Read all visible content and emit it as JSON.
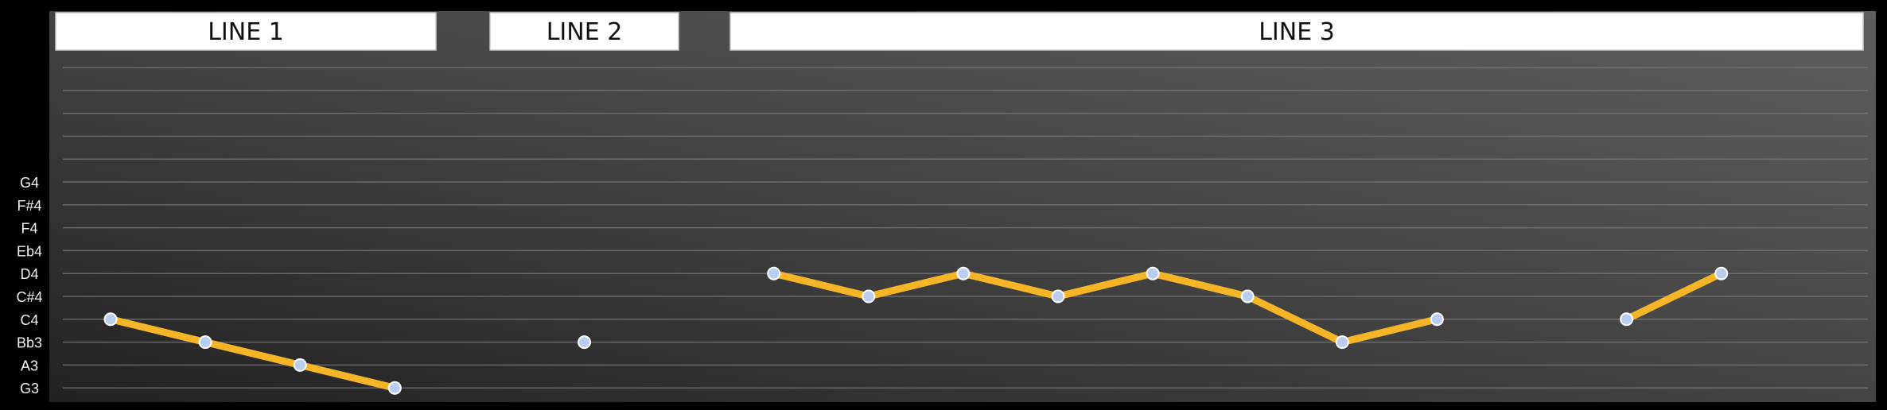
{
  "chart_data": {
    "type": "line",
    "title": "",
    "xlabel": "",
    "ylabel": "",
    "grid": true,
    "colors": {
      "line": "#f6b526",
      "marker_fill": "#b9cdf0",
      "marker_edge": "#ffffff",
      "plot_bg_light": "#5a5a5a",
      "plot_bg_dark": "#2a2a2a",
      "header_bg": "#ffffff",
      "header_text": "#111111",
      "tick_text": "#f2f2f2"
    },
    "y_ticks": [
      "G3",
      "A3",
      "Bb3",
      "C4",
      "C#4",
      "D4",
      "Eb4",
      "F4",
      "F#4",
      "G4"
    ],
    "sections": [
      {
        "label": "LINE 1"
      },
      {
        "label": "LINE 2"
      },
      {
        "label": "LINE 3"
      }
    ],
    "series": [
      {
        "values": [
          {
            "x": 1,
            "y": "C4"
          },
          {
            "x": 2,
            "y": "Bb3"
          },
          {
            "x": 3,
            "y": "A3"
          },
          {
            "x": 4,
            "y": "G3"
          }
        ]
      },
      {
        "values": [
          {
            "x": 6,
            "y": "Bb3"
          }
        ]
      },
      {
        "values": [
          {
            "x": 8,
            "y": "D4"
          },
          {
            "x": 9,
            "y": "C#4"
          },
          {
            "x": 10,
            "y": "D4"
          },
          {
            "x": 11,
            "y": "C#4"
          },
          {
            "x": 12,
            "y": "D4"
          },
          {
            "x": 13,
            "y": "C#4"
          },
          {
            "x": 14,
            "y": "Bb3"
          },
          {
            "x": 15,
            "y": "C4"
          }
        ]
      },
      {
        "values": [
          {
            "x": 17,
            "y": "C4"
          },
          {
            "x": 18,
            "y": "D4"
          }
        ]
      }
    ]
  }
}
